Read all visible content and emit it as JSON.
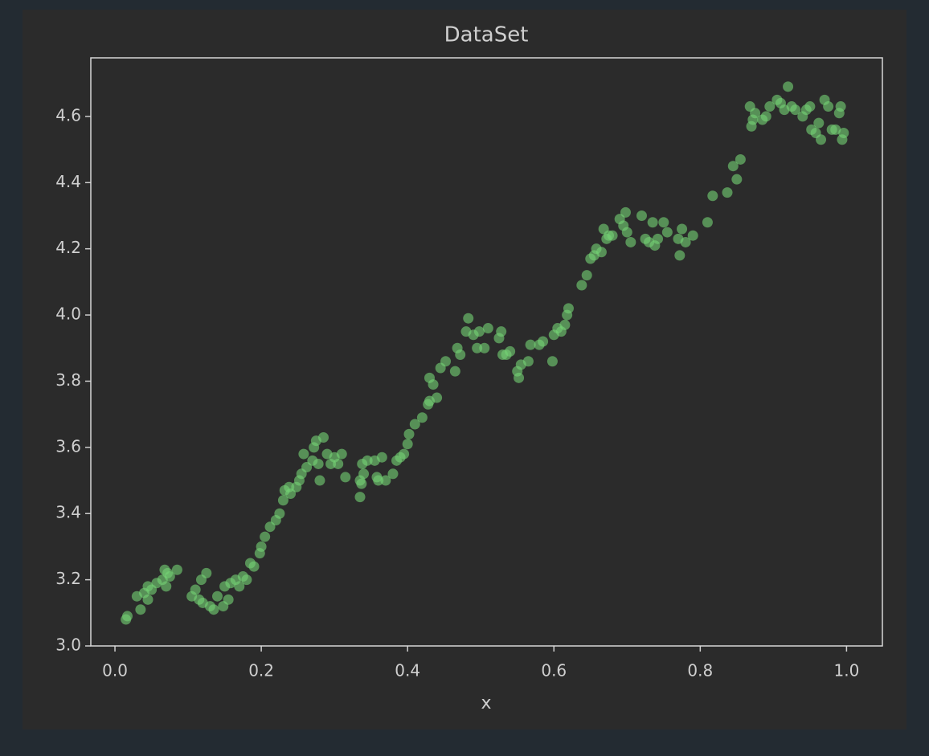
{
  "chart_data": {
    "type": "scatter",
    "title": "DataSet",
    "x_label": "x",
    "color": "#74d474",
    "alpha": 0.6,
    "x": [
      0.015,
      0.017,
      0.03,
      0.035,
      0.04,
      0.045,
      0.045,
      0.05,
      0.057,
      0.065,
      0.068,
      0.07,
      0.072,
      0.075,
      0.085,
      0.105,
      0.11,
      0.115,
      0.118,
      0.12,
      0.125,
      0.13,
      0.135,
      0.14,
      0.148,
      0.15,
      0.155,
      0.158,
      0.165,
      0.17,
      0.175,
      0.18,
      0.185,
      0.19,
      0.198,
      0.2,
      0.205,
      0.212,
      0.22,
      0.225,
      0.23,
      0.232,
      0.238,
      0.24,
      0.248,
      0.252,
      0.255,
      0.258,
      0.262,
      0.27,
      0.272,
      0.275,
      0.278,
      0.28,
      0.285,
      0.29,
      0.295,
      0.3,
      0.305,
      0.31,
      0.315,
      0.335,
      0.335,
      0.337,
      0.338,
      0.34,
      0.345,
      0.355,
      0.358,
      0.36,
      0.365,
      0.37,
      0.38,
      0.385,
      0.39,
      0.395,
      0.4,
      0.402,
      0.41,
      0.42,
      0.428,
      0.43,
      0.43,
      0.435,
      0.44,
      0.445,
      0.452,
      0.465,
      0.468,
      0.472,
      0.48,
      0.483,
      0.49,
      0.495,
      0.498,
      0.505,
      0.51,
      0.525,
      0.528,
      0.53,
      0.535,
      0.54,
      0.55,
      0.552,
      0.555,
      0.565,
      0.568,
      0.58,
      0.585,
      0.598,
      0.6,
      0.605,
      0.61,
      0.615,
      0.618,
      0.62,
      0.638,
      0.645,
      0.65,
      0.655,
      0.658,
      0.665,
      0.668,
      0.672,
      0.675,
      0.68,
      0.69,
      0.695,
      0.698,
      0.7,
      0.705,
      0.72,
      0.725,
      0.73,
      0.735,
      0.738,
      0.742,
      0.75,
      0.755,
      0.77,
      0.772,
      0.775,
      0.78,
      0.79,
      0.81,
      0.817,
      0.837,
      0.845,
      0.85,
      0.855,
      0.868,
      0.87,
      0.872,
      0.875,
      0.885,
      0.89,
      0.895,
      0.905,
      0.91,
      0.915,
      0.92,
      0.925,
      0.93,
      0.94,
      0.945,
      0.95,
      0.952,
      0.958,
      0.962,
      0.965,
      0.97,
      0.975,
      0.98,
      0.985,
      0.99,
      0.992,
      0.994,
      0.996
    ],
    "values": [
      3.08,
      3.09,
      3.15,
      3.11,
      3.16,
      3.18,
      3.14,
      3.17,
      3.19,
      3.2,
      3.23,
      3.18,
      3.22,
      3.21,
      3.23,
      3.15,
      3.17,
      3.14,
      3.2,
      3.13,
      3.22,
      3.12,
      3.11,
      3.15,
      3.12,
      3.18,
      3.14,
      3.19,
      3.2,
      3.18,
      3.21,
      3.2,
      3.25,
      3.24,
      3.28,
      3.3,
      3.33,
      3.36,
      3.38,
      3.4,
      3.44,
      3.47,
      3.48,
      3.46,
      3.48,
      3.5,
      3.52,
      3.58,
      3.54,
      3.56,
      3.6,
      3.62,
      3.55,
      3.5,
      3.63,
      3.58,
      3.55,
      3.57,
      3.55,
      3.58,
      3.51,
      3.45,
      3.5,
      3.49,
      3.55,
      3.52,
      3.56,
      3.56,
      3.51,
      3.5,
      3.57,
      3.5,
      3.52,
      3.56,
      3.57,
      3.58,
      3.61,
      3.64,
      3.67,
      3.69,
      3.73,
      3.74,
      3.81,
      3.79,
      3.75,
      3.84,
      3.86,
      3.83,
      3.9,
      3.88,
      3.95,
      3.99,
      3.94,
      3.9,
      3.95,
      3.9,
      3.96,
      3.93,
      3.95,
      3.88,
      3.88,
      3.89,
      3.83,
      3.81,
      3.85,
      3.86,
      3.91,
      3.91,
      3.92,
      3.86,
      3.94,
      3.96,
      3.95,
      3.97,
      4.0,
      4.02,
      4.09,
      4.12,
      4.17,
      4.18,
      4.2,
      4.19,
      4.26,
      4.23,
      4.24,
      4.24,
      4.29,
      4.27,
      4.31,
      4.25,
      4.22,
      4.3,
      4.23,
      4.22,
      4.28,
      4.21,
      4.23,
      4.28,
      4.25,
      4.23,
      4.18,
      4.26,
      4.22,
      4.24,
      4.28,
      4.36,
      4.37,
      4.45,
      4.41,
      4.47,
      4.63,
      4.57,
      4.59,
      4.61,
      4.59,
      4.6,
      4.63,
      4.65,
      4.64,
      4.62,
      4.69,
      4.63,
      4.62,
      4.6,
      4.62,
      4.63,
      4.56,
      4.55,
      4.58,
      4.53,
      4.65,
      4.63,
      4.56,
      4.56,
      4.61,
      4.63,
      4.53,
      4.55
    ],
    "xlim": [
      -0.033,
      1.049
    ],
    "ylim": [
      3.0,
      4.777
    ],
    "xticks": [
      {
        "value": 0,
        "label": "0.0"
      },
      0.2,
      0.4,
      0.6,
      0.8,
      {
        "value": 1,
        "label": "1.0"
      }
    ],
    "yticks": [
      {
        "value": 3,
        "label": "3.0"
      },
      3.2,
      3.4,
      3.6,
      3.8,
      {
        "value": 4,
        "label": "4.0"
      },
      4.2,
      4.4,
      4.6
    ]
  }
}
